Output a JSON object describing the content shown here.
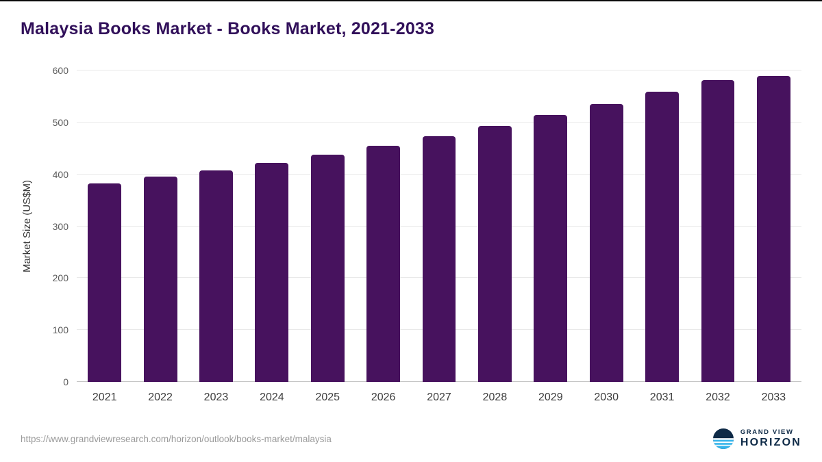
{
  "title": "Malaysia Books Market - Books Market, 2021-2033",
  "chart_data": {
    "type": "bar",
    "title": "Malaysia Books Market - Books Market, 2021-2033",
    "categories": [
      "2021",
      "2022",
      "2023",
      "2024",
      "2025",
      "2026",
      "2027",
      "2028",
      "2029",
      "2030",
      "2031",
      "2032",
      "2033"
    ],
    "values": [
      383,
      395,
      408,
      422,
      438,
      455,
      473,
      493,
      514,
      536,
      559,
      581,
      590
    ],
    "xlabel": "",
    "ylabel": "Market Size (US$M)",
    "ylim": [
      0,
      600
    ],
    "yticks": [
      0,
      100,
      200,
      300,
      400,
      500,
      600
    ],
    "grid": true,
    "legend": "none"
  },
  "colors": {
    "bar": "#47125E",
    "title": "#31105A",
    "grid": "#e9e9e9",
    "axis_text": "#595959",
    "logo_navy": "#0e2a47",
    "logo_blue": "#35b4ea"
  },
  "footer": {
    "url": "https://www.grandviewresearch.com/horizon/outlook/books-market/malaysia",
    "logo": {
      "line1": "GRAND VIEW",
      "line2": "HORIZON"
    }
  }
}
